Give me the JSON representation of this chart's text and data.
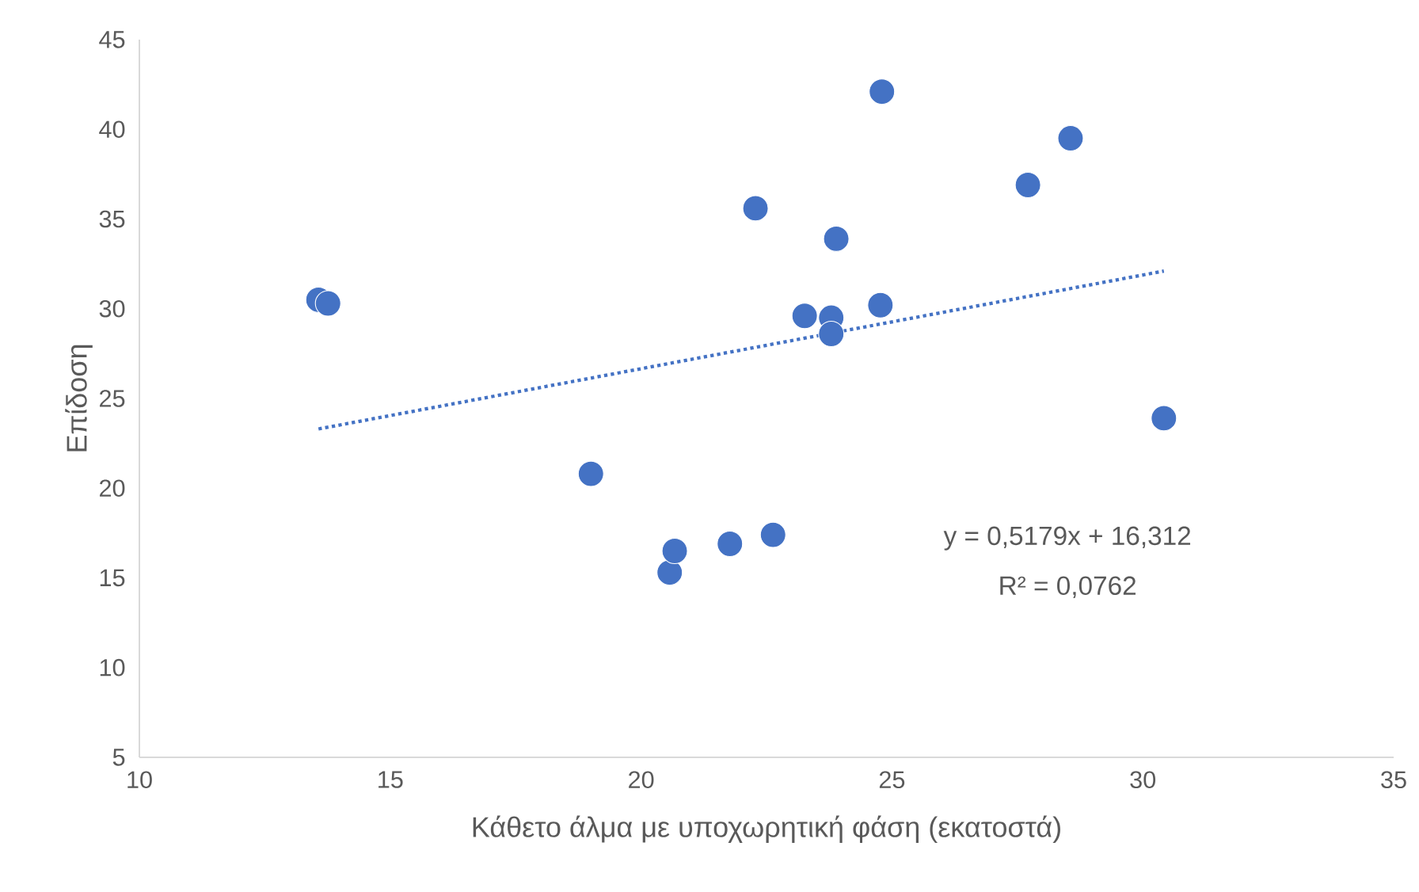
{
  "chart_data": {
    "type": "scatter",
    "xlabel": "Κάθετο άλμα με υποχωρητική φάση (εκατοστά)",
    "ylabel": "Επίδοση",
    "xlim": [
      10,
      35
    ],
    "xticks": [
      10,
      15,
      20,
      25,
      30,
      35
    ],
    "ylim": [
      5,
      45
    ],
    "yticks": [
      5,
      10,
      15,
      20,
      25,
      30,
      35,
      40,
      45
    ],
    "marker": "circle",
    "series": [
      {
        "color": "#4472c4",
        "x": [
          13.57,
          13.76,
          19.0,
          20.57,
          20.67,
          21.77,
          22.63,
          22.28,
          23.26,
          23.79,
          23.79,
          23.89,
          24.77,
          24.8,
          27.71,
          28.56,
          30.42
        ],
        "values": [
          30.5,
          30.3,
          20.8,
          15.3,
          16.5,
          16.9,
          17.4,
          35.6,
          29.6,
          29.5,
          28.6,
          33.9,
          30.2,
          42.1,
          36.9,
          39.5,
          23.9
        ]
      },
      {
        "type": "line",
        "color": "#4472c4",
        "marker": "none",
        "line_style": "dotted",
        "x": [
          13.57,
          30.42
        ],
        "values": [
          23.3,
          32.1
        ]
      }
    ],
    "annotations": [
      "y = 0,5179x + 16,312",
      "R² = 0,0762"
    ]
  }
}
